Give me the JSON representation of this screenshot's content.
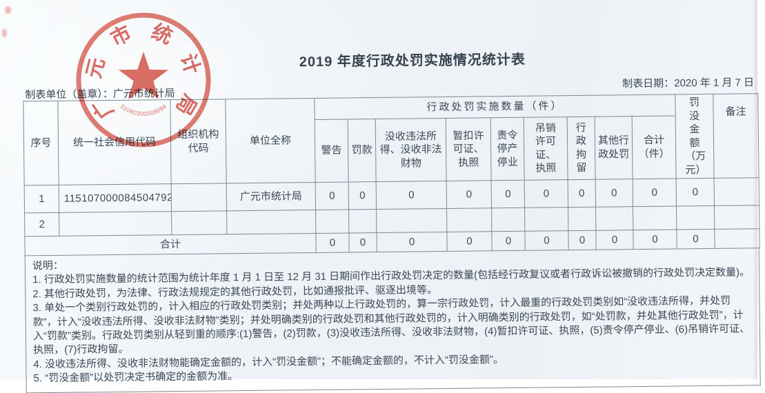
{
  "page": {
    "title": "2019 年度行政处罚实施情况统计表",
    "made_by_label": "制表单位（盖章）：广元市统计局",
    "date_label": "制表日期：2020 年 1 月 7 日"
  },
  "seal": {
    "org_text": "广元市统计局",
    "serial": "51080300008089",
    "color": "#d6493c"
  },
  "table": {
    "group_header": "行政处罚实施数量（件）",
    "headers": {
      "seq": "序号",
      "credit_code": "统一社会信用代码",
      "org_code": "组织机构代码",
      "unit_name": "单位全称",
      "warning": "警告",
      "fine": "罚款",
      "confiscate": "没收违法所得、没收非法财物",
      "suspend_license": "暂扣许可证、执照",
      "halt_production": "责令停产停业",
      "revoke_license": "吊销许可证、执照",
      "detention": "行政拘留",
      "other": "其他行政处罚",
      "subtotal": "合计（件）",
      "amount": "罚没金额（万元）",
      "remark": "备注"
    },
    "rows": [
      {
        "seq": "1",
        "credit_code": "115107000084504792",
        "org_code": "",
        "unit_name": "广元市统计局",
        "values": [
          "0",
          "0",
          "0",
          "0",
          "0",
          "0",
          "0",
          "0",
          "0",
          "0"
        ],
        "remark": ""
      },
      {
        "seq": "2",
        "credit_code": "",
        "org_code": "",
        "unit_name": "",
        "values": [
          "",
          "",
          "",
          "",
          "",
          "",
          "",
          "",
          "",
          ""
        ],
        "remark": ""
      }
    ],
    "total_row": {
      "label": "合计",
      "values": [
        "0",
        "0",
        "0",
        "0",
        "0",
        "0",
        "0",
        "0",
        "0",
        "0"
      ],
      "remark": ""
    }
  },
  "notes": {
    "heading": "说明：",
    "items": [
      "1. 行政处罚实施数量的统计范围为统计年度 1 月 1 日至 12 月 31 日期间作出行政处罚决定的数量(包括经行政复议或者行政诉讼被撤销的行政处罚决定数量)。",
      "2. 其他行政处罚，为法律、行政法规规定的其他行政处罚，比如通报批评、驱逐出境等。",
      "3. 单处一个类别行政处罚的，计入相应的行政处罚类别；并处两种以上行政处罚的，算一宗行政处罚，计入最重的行政处罚类别如“没收违法所得，并处罚款”，计入“没收违法所得、没收非法财物”类别；并处明确类别的行政处罚和其他行政处罚的，计入明确类别的行政处罚，如“处罚款，并处其他行政处罚”，计入“罚款”类别。行政处罚类别从轻到重的顺序:(1)警告，(2)罚款，(3)没收违法所得、没收非法财物，(4)暂扣许可证、执照，(5)责令停产停业、(6)吊销许可证、执照，(7)行政拘留。",
      "4. 没收违法所得、没收非法财物能确定金额的，计入“罚没金额”；不能确定金额的，不计入“罚没金额”。",
      "5. “罚没金额”以处罚决定书确定的金额为准。"
    ]
  }
}
